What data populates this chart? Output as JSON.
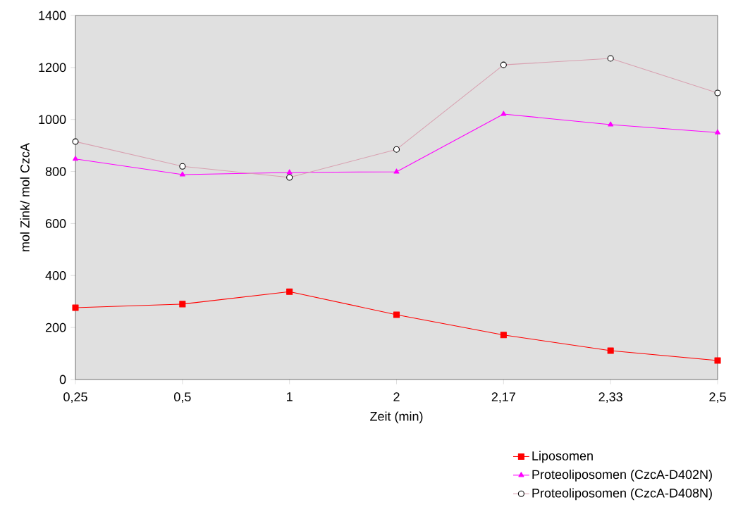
{
  "chart_data": {
    "type": "line",
    "xlabel": "Zeit (min)",
    "ylabel": "mol Zink/ mol CzcA",
    "categories": [
      "0,25",
      "0,5",
      "1",
      "2",
      "2,17",
      "2,33",
      "2,5"
    ],
    "series": [
      {
        "name": "Liposomen",
        "color": "#ff0000",
        "marker": "square",
        "values": [
          276,
          290,
          338,
          249,
          171,
          111,
          73
        ]
      },
      {
        "name": "Proteoliposomen (CzcA-D402N)",
        "color": "#ff00ff",
        "marker": "triangle",
        "values": [
          848,
          788,
          796,
          799,
          1021,
          980,
          950
        ]
      },
      {
        "name": "Proteoliposomen (CzcA-D408N)",
        "color": "#d8a0b0",
        "marker": "circle",
        "values": [
          915,
          820,
          777,
          885,
          1210,
          1235,
          1102
        ]
      }
    ],
    "ylim": [
      0,
      1400
    ],
    "yticks": [
      0,
      200,
      400,
      600,
      800,
      1000,
      1200,
      1400
    ],
    "grid": false,
    "legend": "bottom right",
    "line_style": "solid"
  }
}
